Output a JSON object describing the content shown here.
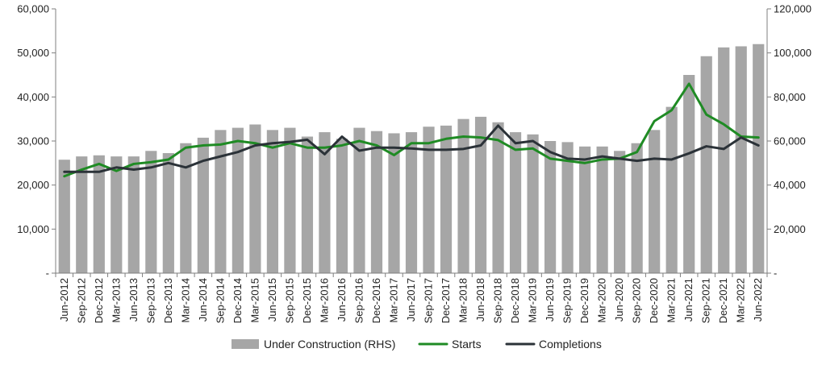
{
  "chart_data": {
    "type": "bar+line",
    "title": "",
    "categories": [
      "Jun-2012",
      "Sep-2012",
      "Dec-2012",
      "Mar-2013",
      "Jun-2013",
      "Sep-2013",
      "Dec-2013",
      "Mar-2014",
      "Jun-2014",
      "Sep-2014",
      "Dec-2014",
      "Mar-2015",
      "Jun-2015",
      "Sep-2015",
      "Dec-2015",
      "Mar-2016",
      "Jun-2016",
      "Sep-2016",
      "Dec-2016",
      "Mar-2017",
      "Jun-2017",
      "Sep-2017",
      "Dec-2017",
      "Mar-2018",
      "Jun-2018",
      "Sep-2018",
      "Dec-2018",
      "Mar-2019",
      "Jun-2019",
      "Sep-2019",
      "Dec-2019",
      "Mar-2020",
      "Jun-2020",
      "Sep-2020",
      "Dec-2020",
      "Mar-2021",
      "Jun-2021",
      "Sep-2021",
      "Dec-2021",
      "Mar-2022",
      "Jun-2022"
    ],
    "category_labels": [
      "Jun-2012",
      "Sep-2012",
      "Dec-2012",
      "Mar-2013",
      "Jun-2013",
      "Sep-2013",
      "Dec-2013",
      "Mar-2014",
      "Jun-2014",
      "Sep-2014",
      "Dec-2014",
      "Mar-2015",
      "Jun-2015",
      "Sep-2015",
      "Dec-2015",
      "Mar-2016",
      "Jun-2016",
      "Sep-2016",
      "Dec-2016",
      "Mar-2017",
      "Jun-2017",
      "Sep-2017",
      "Dec-2017",
      "Mar-2018",
      "Jun-2018",
      "Sep-2018",
      "Dec-2018",
      "Mar-2019",
      "Jun-2019",
      "Sep-2019",
      "Dec-2019",
      "Mar-2020",
      "Jun-2020",
      "Sep-2020",
      "Dec-2020",
      "Mar-2021",
      "Jun-2021",
      "Sep-2021",
      "Dec-2021",
      "Mar-2022",
      "Jun-2022"
    ],
    "series": [
      {
        "name": "Under Construction (RHS)",
        "type": "bar",
        "axis": "right",
        "color": "#a6a6a6",
        "values": [
          51500,
          53000,
          53500,
          53000,
          53000,
          55500,
          54500,
          59000,
          61500,
          65000,
          66000,
          67500,
          65000,
          66000,
          62000,
          64000,
          61000,
          66000,
          64500,
          63500,
          64000,
          66500,
          67000,
          70000,
          71000,
          68500,
          64000,
          63000,
          60000,
          59500,
          57500,
          57500,
          55500,
          59000,
          65000,
          75500,
          90000,
          98500,
          102500,
          103000,
          104000
        ]
      },
      {
        "name": "Starts",
        "type": "line",
        "axis": "left",
        "color": "#1f8b24",
        "values": [
          22000,
          23500,
          24800,
          23200,
          24800,
          25200,
          25800,
          28500,
          29000,
          29200,
          30000,
          29500,
          28500,
          29500,
          28500,
          28500,
          29000,
          30000,
          29000,
          26800,
          29500,
          29500,
          30500,
          31000,
          30800,
          30200,
          28000,
          28300,
          26000,
          25500,
          25000,
          25800,
          26000,
          27500,
          34500,
          37000,
          43000,
          36000,
          33800,
          31000,
          30800
        ]
      },
      {
        "name": "Completions",
        "type": "line",
        "axis": "left",
        "color": "#2b3238",
        "values": [
          23000,
          23000,
          23000,
          24000,
          23500,
          24000,
          25000,
          24000,
          25500,
          26500,
          27500,
          29000,
          29500,
          29800,
          30300,
          27000,
          31000,
          27800,
          28500,
          28500,
          28300,
          28000,
          28000,
          28200,
          29000,
          33500,
          29500,
          30000,
          27500,
          26000,
          25800,
          26500,
          26000,
          25500,
          26000,
          25800,
          27200,
          28800,
          28200,
          30800,
          29000
        ]
      }
    ],
    "y_left": {
      "ylim": [
        0,
        60000
      ],
      "ticks": [
        0,
        10000,
        20000,
        30000,
        40000,
        50000,
        60000
      ],
      "tick_labels": [
        "-",
        "10,000",
        "20,000",
        "30,000",
        "40,000",
        "50,000",
        "60,000"
      ]
    },
    "y_right": {
      "ylim": [
        0,
        120000
      ],
      "ticks": [
        0,
        20000,
        40000,
        60000,
        80000,
        100000,
        120000
      ],
      "tick_labels": [
        "-",
        "20,000",
        "40,000",
        "60,000",
        "80,000",
        "100,000",
        "120,000"
      ]
    },
    "legend_position": "bottom",
    "legend": [
      {
        "label": "Under Construction (RHS)",
        "kind": "bar",
        "color": "#a6a6a6"
      },
      {
        "label": "Starts",
        "kind": "line",
        "color": "#1f8b24"
      },
      {
        "label": "Completions",
        "kind": "line",
        "color": "#2b3238"
      }
    ],
    "colors": {
      "axis": "#7f7f7f",
      "text": "#222222",
      "background": "#ffffff"
    }
  }
}
